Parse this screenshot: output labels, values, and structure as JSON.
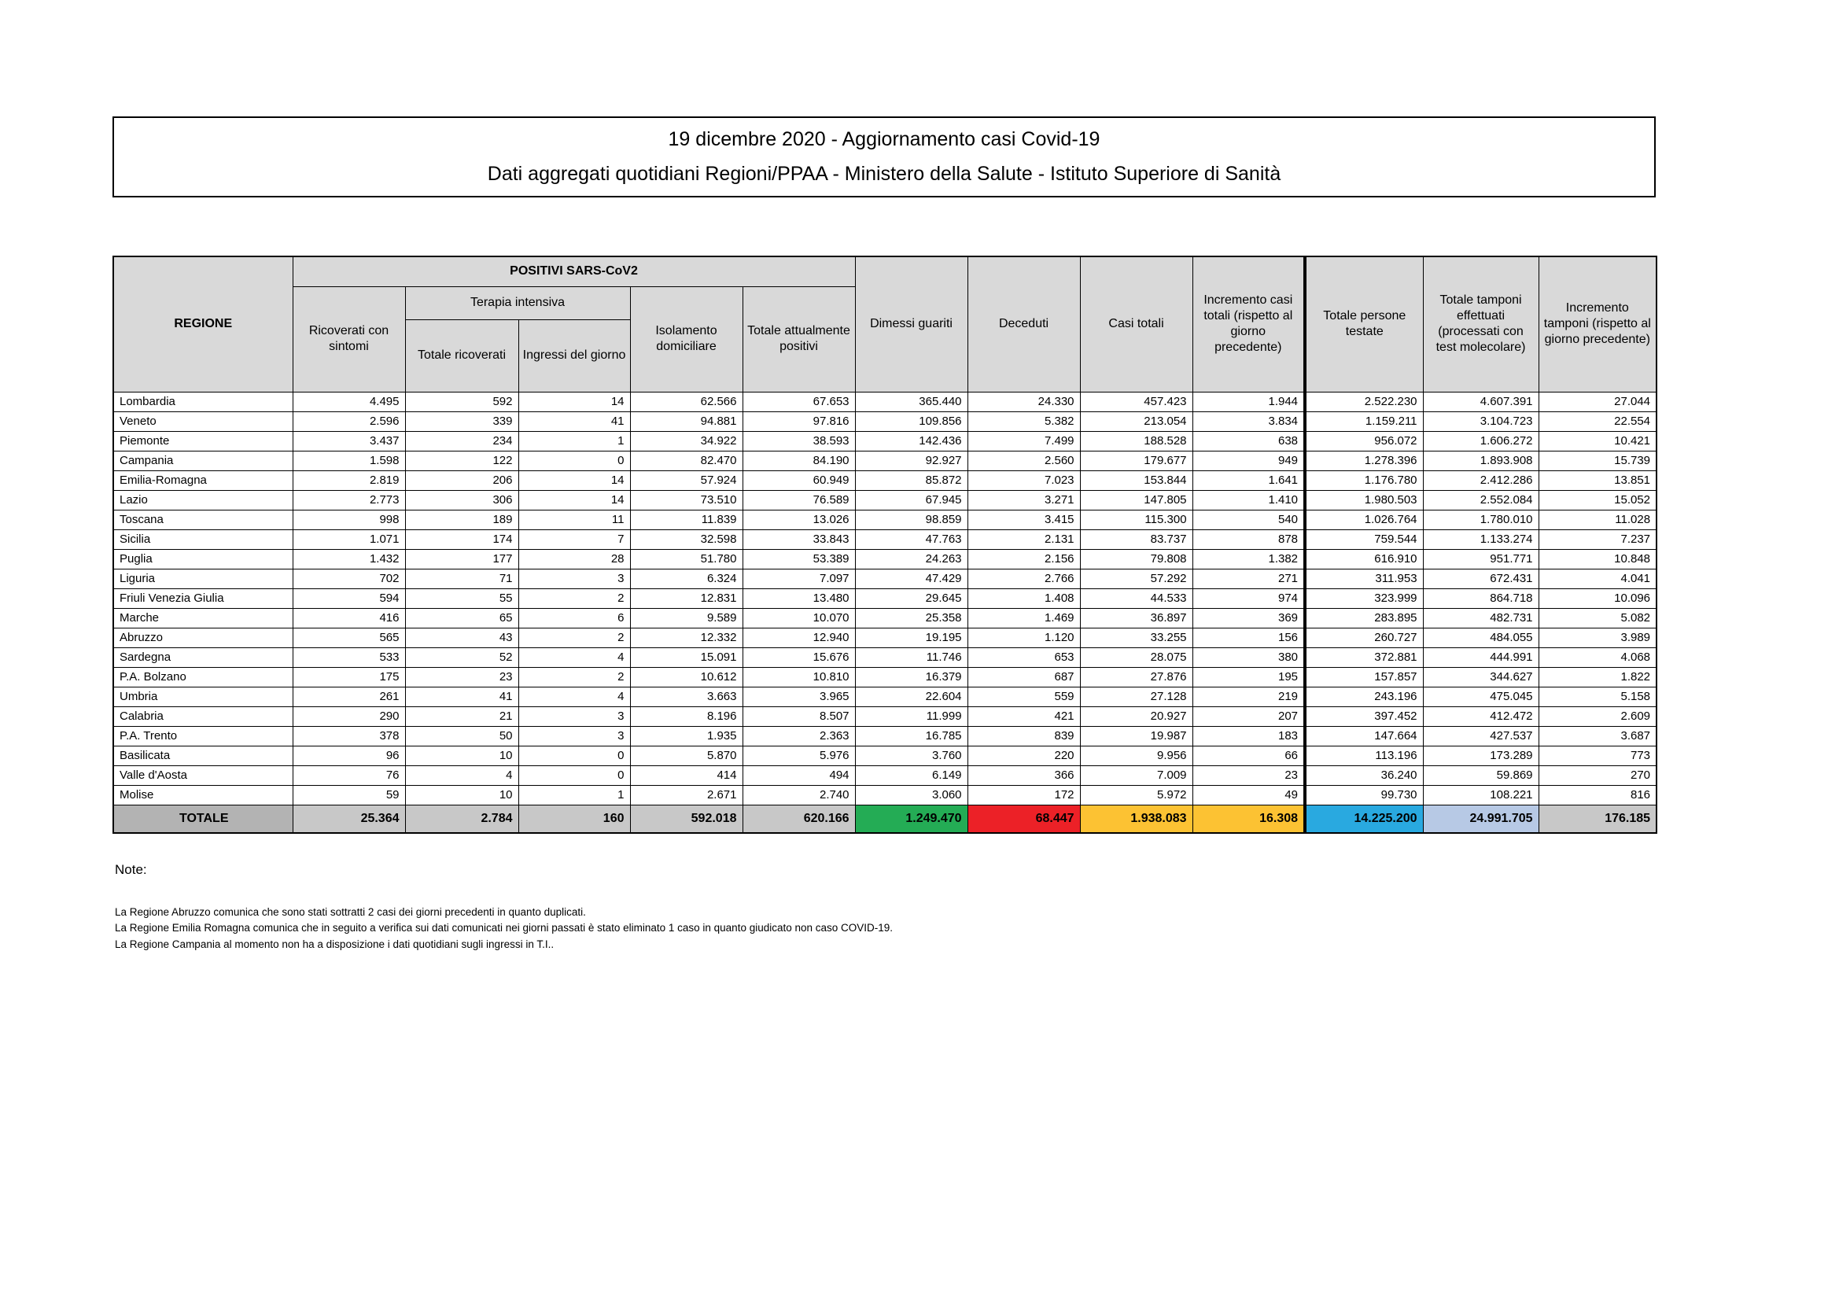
{
  "title": {
    "line1": "19 dicembre 2020 - Aggiornamento casi Covid-19",
    "line2": "Dati aggregati quotidiani Regioni/PPAA - Ministero della Salute - Istituto Superiore di Sanità"
  },
  "colors": {
    "green": "#24AC55",
    "red": "#EC2127",
    "yellow": "#FCC233",
    "blue": "#29A9E0",
    "light_blue": "#B7C9E5",
    "header_gray": "#A6A6A6",
    "light_gray": "#D9D9D9",
    "total_label_gray": "#B3B3B3",
    "total_cell_gray": "#C8C8C8"
  },
  "table": {
    "header": {
      "regione": "REGIONE",
      "positivi_group": "POSITIVI SARS-CoV2",
      "terapia_group": "Terapia intensiva",
      "ricoverati_sintomi": "Ricoverati con sintomi",
      "totale_ricoverati": "Totale ricoverati",
      "ingressi_giorno": "Ingressi del giorno",
      "isolamento": "Isolamento domiciliare",
      "totale_positivi": "Totale attualmente positivi",
      "dimessi": "Dimessi guariti",
      "deceduti": "Deceduti",
      "casi_totali": "Casi totali",
      "incremento_casi": "Incremento casi totali (rispetto al giorno precedente)",
      "persone_testate": "Totale persone testate",
      "tamponi": "Totale tamponi effettuati (processati con test molecolare)",
      "incremento_tamponi": "Incremento tamponi (rispetto al giorno precedente)"
    },
    "rows": [
      {
        "regione": "Lombardia",
        "values": [
          "4.495",
          "592",
          "14",
          "62.566",
          "67.653",
          "365.440",
          "24.330",
          "457.423",
          "1.944",
          "2.522.230",
          "4.607.391",
          "27.044"
        ]
      },
      {
        "regione": "Veneto",
        "values": [
          "2.596",
          "339",
          "41",
          "94.881",
          "97.816",
          "109.856",
          "5.382",
          "213.054",
          "3.834",
          "1.159.211",
          "3.104.723",
          "22.554"
        ]
      },
      {
        "regione": "Piemonte",
        "values": [
          "3.437",
          "234",
          "1",
          "34.922",
          "38.593",
          "142.436",
          "7.499",
          "188.528",
          "638",
          "956.072",
          "1.606.272",
          "10.421"
        ]
      },
      {
        "regione": "Campania",
        "values": [
          "1.598",
          "122",
          "0",
          "82.470",
          "84.190",
          "92.927",
          "2.560",
          "179.677",
          "949",
          "1.278.396",
          "1.893.908",
          "15.739"
        ]
      },
      {
        "regione": "Emilia-Romagna",
        "values": [
          "2.819",
          "206",
          "14",
          "57.924",
          "60.949",
          "85.872",
          "7.023",
          "153.844",
          "1.641",
          "1.176.780",
          "2.412.286",
          "13.851"
        ]
      },
      {
        "regione": "Lazio",
        "values": [
          "2.773",
          "306",
          "14",
          "73.510",
          "76.589",
          "67.945",
          "3.271",
          "147.805",
          "1.410",
          "1.980.503",
          "2.552.084",
          "15.052"
        ]
      },
      {
        "regione": "Toscana",
        "values": [
          "998",
          "189",
          "11",
          "11.839",
          "13.026",
          "98.859",
          "3.415",
          "115.300",
          "540",
          "1.026.764",
          "1.780.010",
          "11.028"
        ]
      },
      {
        "regione": "Sicilia",
        "values": [
          "1.071",
          "174",
          "7",
          "32.598",
          "33.843",
          "47.763",
          "2.131",
          "83.737",
          "878",
          "759.544",
          "1.133.274",
          "7.237"
        ]
      },
      {
        "regione": "Puglia",
        "values": [
          "1.432",
          "177",
          "28",
          "51.780",
          "53.389",
          "24.263",
          "2.156",
          "79.808",
          "1.382",
          "616.910",
          "951.771",
          "10.848"
        ]
      },
      {
        "regione": "Liguria",
        "values": [
          "702",
          "71",
          "3",
          "6.324",
          "7.097",
          "47.429",
          "2.766",
          "57.292",
          "271",
          "311.953",
          "672.431",
          "4.041"
        ]
      },
      {
        "regione": "Friuli Venezia Giulia",
        "values": [
          "594",
          "55",
          "2",
          "12.831",
          "13.480",
          "29.645",
          "1.408",
          "44.533",
          "974",
          "323.999",
          "864.718",
          "10.096"
        ]
      },
      {
        "regione": "Marche",
        "values": [
          "416",
          "65",
          "6",
          "9.589",
          "10.070",
          "25.358",
          "1.469",
          "36.897",
          "369",
          "283.895",
          "482.731",
          "5.082"
        ]
      },
      {
        "regione": "Abruzzo",
        "values": [
          "565",
          "43",
          "2",
          "12.332",
          "12.940",
          "19.195",
          "1.120",
          "33.255",
          "156",
          "260.727",
          "484.055",
          "3.989"
        ]
      },
      {
        "regione": "Sardegna",
        "values": [
          "533",
          "52",
          "4",
          "15.091",
          "15.676",
          "11.746",
          "653",
          "28.075",
          "380",
          "372.881",
          "444.991",
          "4.068"
        ]
      },
      {
        "regione": "P.A. Bolzano",
        "values": [
          "175",
          "23",
          "2",
          "10.612",
          "10.810",
          "16.379",
          "687",
          "27.876",
          "195",
          "157.857",
          "344.627",
          "1.822"
        ]
      },
      {
        "regione": "Umbria",
        "values": [
          "261",
          "41",
          "4",
          "3.663",
          "3.965",
          "22.604",
          "559",
          "27.128",
          "219",
          "243.196",
          "475.045",
          "5.158"
        ]
      },
      {
        "regione": "Calabria",
        "values": [
          "290",
          "21",
          "3",
          "8.196",
          "8.507",
          "11.999",
          "421",
          "20.927",
          "207",
          "397.452",
          "412.472",
          "2.609"
        ]
      },
      {
        "regione": "P.A. Trento",
        "values": [
          "378",
          "50",
          "3",
          "1.935",
          "2.363",
          "16.785",
          "839",
          "19.987",
          "183",
          "147.664",
          "427.537",
          "3.687"
        ]
      },
      {
        "regione": "Basilicata",
        "values": [
          "96",
          "10",
          "0",
          "5.870",
          "5.976",
          "3.760",
          "220",
          "9.956",
          "66",
          "113.196",
          "173.289",
          "773"
        ]
      },
      {
        "regione": "Valle d'Aosta",
        "values": [
          "76",
          "4",
          "0",
          "414",
          "494",
          "6.149",
          "366",
          "7.009",
          "23",
          "36.240",
          "59.869",
          "270"
        ]
      },
      {
        "regione": "Molise",
        "values": [
          "59",
          "10",
          "1",
          "2.671",
          "2.740",
          "3.060",
          "172",
          "5.972",
          "49",
          "99.730",
          "108.221",
          "816"
        ]
      }
    ],
    "total": {
      "label": "TOTALE",
      "values": [
        "25.364",
        "2.784",
        "160",
        "592.018",
        "620.166",
        "1.249.470",
        "68.447",
        "1.938.083",
        "16.308",
        "14.225.200",
        "24.991.705",
        "176.185"
      ]
    }
  },
  "notes": {
    "heading": "Note:",
    "items": [
      "La Regione Abruzzo comunica che sono stati sottratti 2 casi dei giorni precedenti in quanto duplicati.",
      "La Regione Emilia Romagna comunica che in seguito a verifica sui dati comunicati nei giorni passati è stato eliminato 1 caso in quanto giudicato non caso COVID-19.",
      "La Regione Campania al momento non ha a disposizione i dati quotidiani sugli ingressi in T.I.."
    ]
  }
}
